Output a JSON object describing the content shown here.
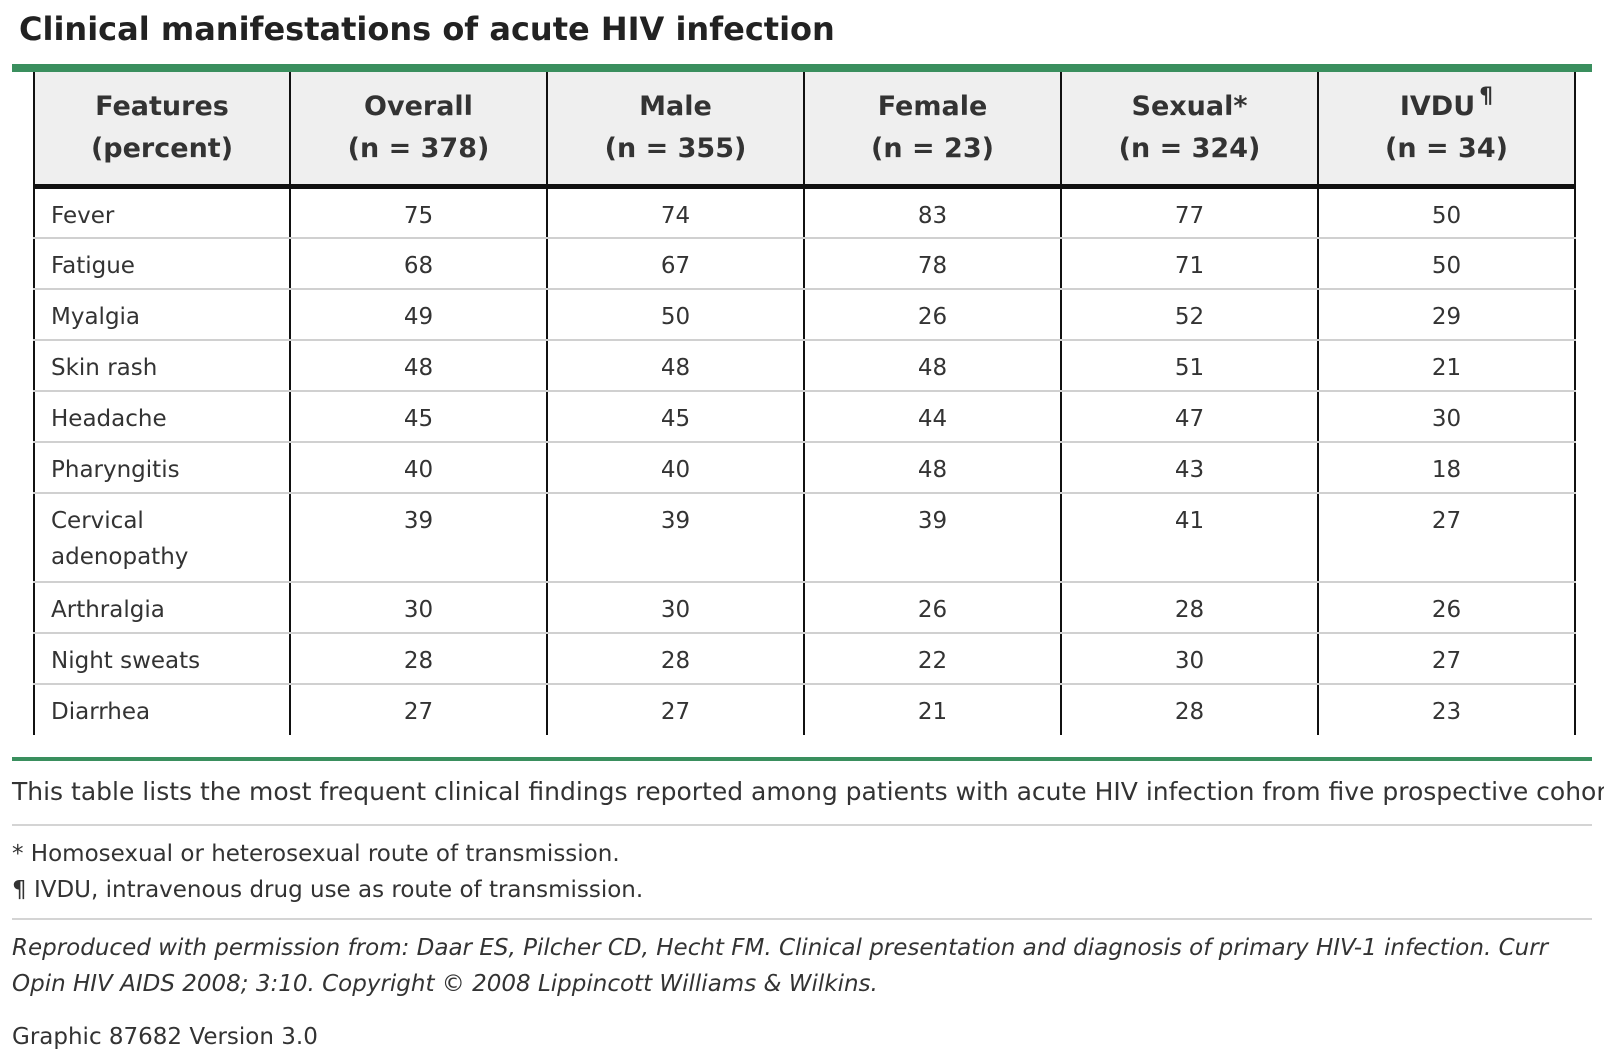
{
  "title": "Clinical manifestations of acute HIV infection",
  "headers": [
    {
      "line1": "Features",
      "line2": "(percent)",
      "mark": ""
    },
    {
      "line1": "Overall",
      "line2": "(n = 378)",
      "mark": ""
    },
    {
      "line1": "Male",
      "line2": "(n = 355)",
      "mark": ""
    },
    {
      "line1": "Female",
      "line2": "(n = 23)",
      "mark": ""
    },
    {
      "line1": "Sexual*",
      "line2": "(n = 324)",
      "mark": ""
    },
    {
      "line1": "IVDU",
      "line2": "(n = 34)",
      "mark": "¶"
    }
  ],
  "rows": [
    {
      "feature": "Fever",
      "values": [
        "75",
        "74",
        "83",
        "77",
        "50"
      ]
    },
    {
      "feature": "Fatigue",
      "values": [
        "68",
        "67",
        "78",
        "71",
        "50"
      ]
    },
    {
      "feature": "Myalgia",
      "values": [
        "49",
        "50",
        "26",
        "52",
        "29"
      ]
    },
    {
      "feature": "Skin rash",
      "values": [
        "48",
        "48",
        "48",
        "51",
        "21"
      ]
    },
    {
      "feature": "Headache",
      "values": [
        "45",
        "45",
        "44",
        "47",
        "30"
      ]
    },
    {
      "feature": "Pharyngitis",
      "values": [
        "40",
        "40",
        "48",
        "43",
        "18"
      ]
    },
    {
      "feature": "Cervical adenopathy",
      "values": [
        "39",
        "39",
        "39",
        "41",
        "27"
      ]
    },
    {
      "feature": "Arthralgia",
      "values": [
        "30",
        "30",
        "26",
        "28",
        "26"
      ]
    },
    {
      "feature": "Night sweats",
      "values": [
        "28",
        "28",
        "22",
        "30",
        "27"
      ]
    },
    {
      "feature": "Diarrhea",
      "values": [
        "27",
        "27",
        "21",
        "28",
        "23"
      ]
    }
  ],
  "caption": "This table lists the most frequent clinical findings reported among patients with acute HIV infection from five prospective cohorts.",
  "footnotes": [
    "* Homosexual or heterosexual route of transmission.",
    "¶ IVDU, intravenous drug use as route of transmission."
  ],
  "citation": "Reproduced with permission from: Daar ES, Pilcher CD, Hecht FM. Clinical presentation and diagnosis of primary HIV-1 infection. Curr Opin HIV AIDS 2008; 3:10. Copyright © 2008 Lippincott Williams & Wilkins.",
  "graphic_label": "Graphic 87682 Version 3.0",
  "colors": {
    "accent": "#3a8f5e",
    "header_bg": "#efefef",
    "rule": "#d4d4d4"
  }
}
